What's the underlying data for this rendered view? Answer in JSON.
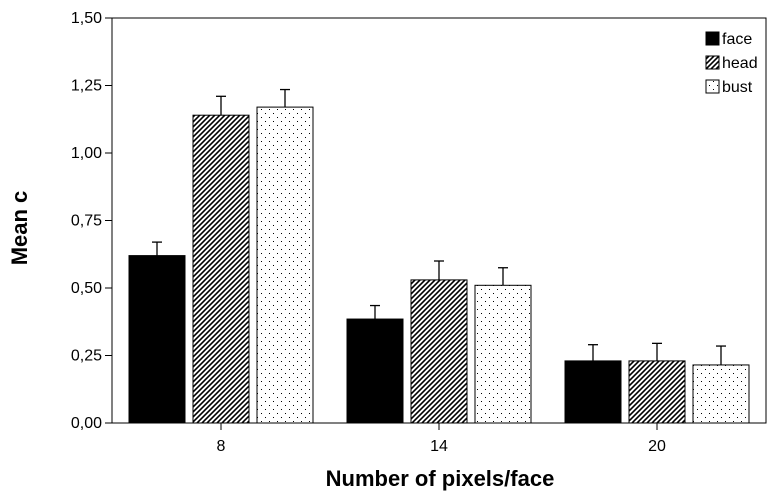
{
  "chart_data": {
    "type": "bar",
    "title": "",
    "xlabel": "Number of pixels/face",
    "ylabel": "Mean c",
    "categories": [
      "8",
      "14",
      "20"
    ],
    "ylim": [
      0,
      1.5
    ],
    "yticks": [
      "0,00",
      "0,25",
      "0,50",
      "0,75",
      "1,00",
      "1,25",
      "1,50"
    ],
    "ytick_values": [
      0,
      0.25,
      0.5,
      0.75,
      1.0,
      1.25,
      1.5
    ],
    "grid": false,
    "legend_position": "top-right",
    "error_bars": true,
    "series": [
      {
        "name": "face",
        "fill": "solid",
        "color": "#000000",
        "values": [
          0.62,
          0.385,
          0.23
        ],
        "errors": [
          0.05,
          0.05,
          0.06
        ]
      },
      {
        "name": "head",
        "fill": "diagonal-hatch",
        "color": "#000000",
        "values": [
          1.14,
          0.53,
          0.23
        ],
        "errors": [
          0.07,
          0.07,
          0.065
        ]
      },
      {
        "name": "bust",
        "fill": "dots",
        "color": "#000000",
        "values": [
          1.17,
          0.51,
          0.215
        ],
        "errors": [
          0.065,
          0.065,
          0.07
        ]
      }
    ]
  }
}
